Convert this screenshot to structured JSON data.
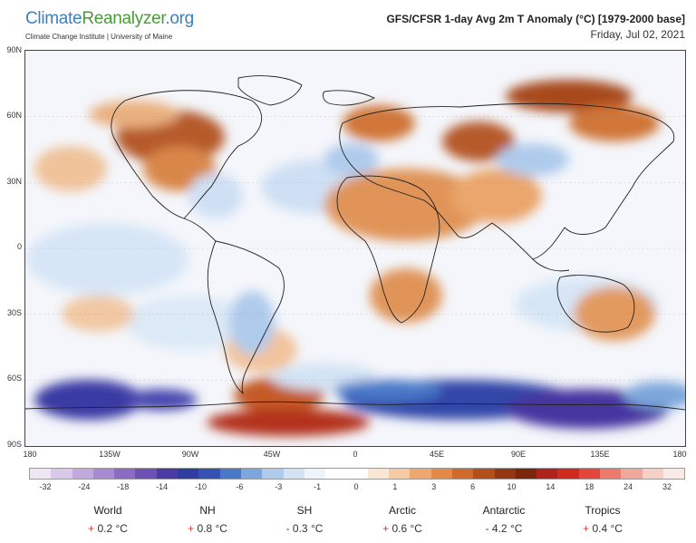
{
  "header": {
    "logo_climate": "Climate",
    "logo_reanalyzer": "Reanalyzer",
    "logo_org": ".org",
    "logo_subtitle": "Climate Change Institute | University of Maine",
    "title": "GFS/CFSR 1-day Avg 2m T Anomaly (°C) [1979-2000 base]",
    "date": "Friday, Jul 02, 2021"
  },
  "map": {
    "lat_labels": [
      "90N",
      "60N",
      "30N",
      "0",
      "30S",
      "60S",
      "90S"
    ],
    "lon_labels": [
      "180",
      "135W",
      "90W",
      "45W",
      "0",
      "45E",
      "90E",
      "135E",
      "180"
    ]
  },
  "legend": {
    "labels": [
      "-32",
      "-24",
      "-18",
      "-14",
      "-10",
      "-6",
      "-3",
      "-1",
      "0",
      "1",
      "3",
      "6",
      "10",
      "14",
      "18",
      "24",
      "32"
    ],
    "colors": [
      "#efe6f5",
      "#d9c8ea",
      "#c1a9de",
      "#a68bd0",
      "#8b6cc2",
      "#6e4fb3",
      "#4a3aa6",
      "#2f3ca0",
      "#3352b3",
      "#4a78c8",
      "#7da7dc",
      "#aecbec",
      "#d3e3f4",
      "#eef4fb",
      "#ffffff",
      "#ffffff",
      "#fbe6d4",
      "#f6cba4",
      "#eea86f",
      "#e38846",
      "#cf6a2a",
      "#b44f1c",
      "#933612",
      "#7a250c",
      "#b0231c",
      "#d02a1f",
      "#e4473a",
      "#ec7a6c",
      "#f1a89c",
      "#f6cfc7",
      "#faeae6"
    ]
  },
  "stats": [
    {
      "name": "World",
      "sign": "+",
      "value": "0.2 °C"
    },
    {
      "name": "NH",
      "sign": "+",
      "value": "0.8 °C"
    },
    {
      "name": "SH",
      "sign": "-",
      "value": "0.3 °C"
    },
    {
      "name": "Arctic",
      "sign": "+",
      "value": "0.6 °C"
    },
    {
      "name": "Antarctic",
      "sign": "-",
      "value": "4.2 °C"
    },
    {
      "name": "Tropics",
      "sign": "+",
      "value": "0.4 °C"
    }
  ]
}
